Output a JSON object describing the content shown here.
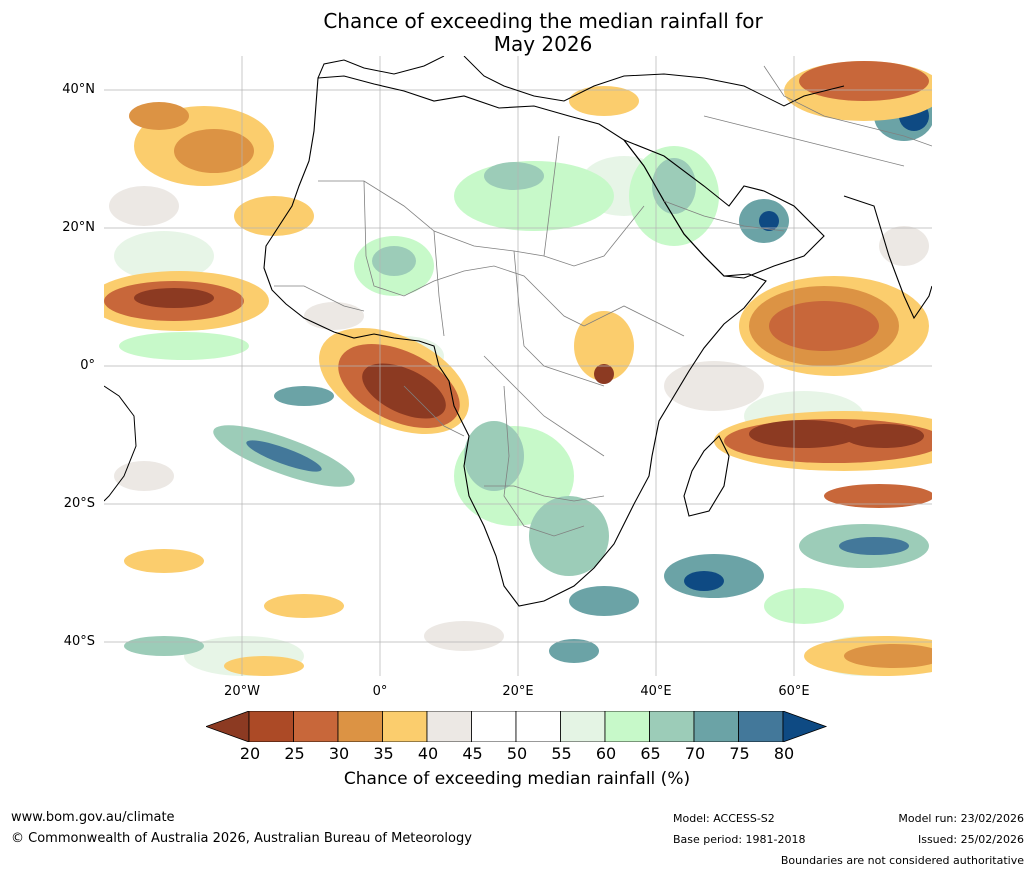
{
  "title": {
    "line1": "Chance of exceeding the median rainfall for",
    "line2": "May 2026"
  },
  "map": {
    "lat_labels": [
      "40°N",
      "20°N",
      "0°",
      "20°S",
      "40°S"
    ],
    "lon_labels": [
      "20°W",
      "0°",
      "20°E",
      "40°E",
      "60°E"
    ]
  },
  "colorbar": {
    "ticks": [
      "20",
      "25",
      "30",
      "35",
      "40",
      "45",
      "50",
      "55",
      "60",
      "65",
      "70",
      "75",
      "80"
    ],
    "title": "Chance of exceeding median rainfall (%)",
    "colors": [
      "#8c3a22",
      "#ac4a26",
      "#c8673a",
      "#dc9344",
      "#fbcd6d",
      "#ece8e4",
      "#ffffff",
      "#ffffff",
      "#e4f4e4",
      "#c7f9c9",
      "#9cccb8",
      "#6ba3a6",
      "#43789a",
      "#0e4a83"
    ]
  },
  "footer": {
    "website": "www.bom.gov.au/climate",
    "copyright": "© Commonwealth of Australia 2026, Australian Bureau of Meteorology",
    "model": "Model: ACCESS-S2",
    "base_period": "Base period: 1981-2018",
    "model_run": "Model run: 23/02/2026",
    "issued": "Issued: 25/02/2026",
    "disclaimer": "Boundaries are not considered authoritative"
  }
}
